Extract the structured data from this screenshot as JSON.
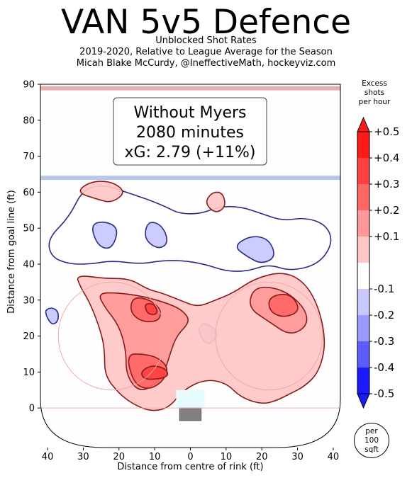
{
  "title": "VAN 5v5 Defence",
  "subtitle_lines": [
    "Unblocked Shot Rates",
    "2019-2020, Relative to League Average for the Season",
    "Micah Blake McCurdy, @IneffectiveMath, hockeyviz.com"
  ],
  "colorbar": {
    "title_lines": [
      "Excess",
      "shots",
      "per hour"
    ],
    "tick_labels": [
      "+0.5",
      "+0.4",
      "+0.3",
      "+0.2",
      "+0.1",
      "-0.1",
      "-0.2",
      "-0.3",
      "-0.4",
      "-0.5"
    ],
    "colors": [
      "#ff1a1a",
      "#ff4040",
      "#ff6666",
      "#ff9898",
      "#ffc6c6",
      "#ffffff",
      "#c8c8ff",
      "#9b9bff",
      "#5c5cff",
      "#1a1aff"
    ],
    "unit_lines": [
      "per",
      "100",
      "sqft"
    ]
  },
  "chart_data": {
    "type": "heatmap",
    "title": "VAN 5v5 Defence",
    "xlabel": "Distance from centre of rink (ft)",
    "ylabel": "Distance from goal line (ft)",
    "xlim": [
      42,
      -42
    ],
    "ylim": [
      -11,
      90
    ],
    "x_ticks": [
      40,
      30,
      20,
      10,
      0,
      10,
      20,
      30,
      40
    ],
    "y_ticks": [
      0,
      10,
      20,
      30,
      40,
      50,
      60,
      70,
      80,
      90
    ],
    "annotation": [
      "Without Myers",
      "2080 minutes",
      "xG: 2.79 (+11%)"
    ],
    "blue_line_y": 64,
    "centre_line_y": 89,
    "faceoff_circles": [
      {
        "x": 22,
        "y": 20,
        "r": 15
      },
      {
        "x": -22,
        "y": 20,
        "r": 15
      }
    ],
    "contour_levels": [
      -0.5,
      -0.4,
      -0.3,
      -0.2,
      -0.1,
      0.1,
      0.2,
      0.3,
      0.4,
      0.5
    ],
    "regions": [
      {
        "level": "-0.1",
        "points": [
          [
            34,
            53
          ],
          [
            30,
            61
          ],
          [
            24,
            62
          ],
          [
            18,
            60
          ],
          [
            12,
            58
          ],
          [
            7,
            56
          ],
          [
            3,
            54
          ],
          [
            -3,
            54
          ],
          [
            -8,
            56
          ],
          [
            -14,
            56
          ],
          [
            -20,
            54
          ],
          [
            -26,
            52
          ],
          [
            -32,
            53
          ],
          [
            -38,
            51
          ],
          [
            -40,
            46
          ],
          [
            -36,
            40
          ],
          [
            -28,
            38
          ],
          [
            -22,
            40
          ],
          [
            -16,
            38
          ],
          [
            -10,
            38
          ],
          [
            -4,
            40
          ],
          [
            2,
            41
          ],
          [
            8,
            41
          ],
          [
            14,
            40
          ],
          [
            22,
            41
          ],
          [
            28,
            40
          ],
          [
            34,
            40
          ],
          [
            39,
            42
          ],
          [
            40,
            47
          ]
        ]
      },
      {
        "level": "-0.2",
        "points": [
          [
            28,
            51
          ],
          [
            24,
            52
          ],
          [
            20,
            50
          ],
          [
            22,
            44
          ],
          [
            26,
            45
          ]
        ]
      },
      {
        "level": "-0.2",
        "points": [
          [
            12,
            52
          ],
          [
            8,
            51
          ],
          [
            6,
            46
          ],
          [
            9,
            44
          ],
          [
            13,
            47
          ]
        ]
      },
      {
        "level": "-0.2",
        "points": [
          [
            -12,
            45
          ],
          [
            -16,
            42
          ],
          [
            -20,
            40
          ],
          [
            -24,
            42
          ],
          [
            -22,
            47
          ],
          [
            -17,
            48
          ]
        ]
      },
      {
        "level": "-0.2",
        "points": [
          [
            -2,
            22
          ],
          [
            -4,
            18
          ],
          [
            -6,
            18
          ],
          [
            -8,
            21
          ],
          [
            -4,
            24
          ]
        ]
      },
      {
        "level": "-0.2",
        "points": [
          [
            41,
            27
          ],
          [
            39,
            23
          ],
          [
            37,
            24
          ],
          [
            37,
            27
          ],
          [
            39,
            28
          ]
        ]
      },
      {
        "level": "0.1",
        "points": [
          [
            32,
            37
          ],
          [
            24,
            36
          ],
          [
            17,
            36
          ],
          [
            12,
            33
          ],
          [
            8,
            32
          ],
          [
            3,
            30
          ],
          [
            -2,
            28
          ],
          [
            -7,
            30
          ],
          [
            -12,
            32
          ],
          [
            -18,
            36
          ],
          [
            -26,
            38
          ],
          [
            -32,
            35
          ],
          [
            -36,
            28
          ],
          [
            -38,
            18
          ],
          [
            -36,
            10
          ],
          [
            -32,
            6
          ],
          [
            -28,
            4
          ],
          [
            -24,
            2
          ],
          [
            -20,
            1
          ],
          [
            -14,
            3
          ],
          [
            -10,
            7
          ],
          [
            -4,
            8
          ],
          [
            2,
            5
          ],
          [
            6,
            0
          ],
          [
            11,
            -1
          ],
          [
            16,
            1
          ],
          [
            20,
            4
          ],
          [
            24,
            9
          ],
          [
            24,
            16
          ],
          [
            25,
            21
          ],
          [
            28,
            29
          ],
          [
            31,
            34
          ]
        ]
      },
      {
        "level": "0.1",
        "points": [
          [
            32,
            60
          ],
          [
            28,
            63
          ],
          [
            22,
            63
          ],
          [
            18,
            60
          ],
          [
            22,
            57
          ],
          [
            26,
            58
          ]
        ]
      },
      {
        "level": "0.1",
        "points": [
          [
            -4,
            57
          ],
          [
            -6,
            60
          ],
          [
            -9,
            60
          ],
          [
            -10,
            56
          ],
          [
            -7,
            54
          ]
        ]
      },
      {
        "level": "0.2",
        "points": [
          [
            26,
            32
          ],
          [
            20,
            32
          ],
          [
            13,
            31
          ],
          [
            6,
            29
          ],
          [
            2,
            27
          ],
          [
            0,
            24
          ],
          [
            4,
            20
          ],
          [
            6,
            14
          ],
          [
            8,
            8
          ],
          [
            14,
            4
          ],
          [
            18,
            9
          ],
          [
            18,
            16
          ],
          [
            20,
            23
          ],
          [
            24,
            28
          ]
        ]
      },
      {
        "level": "0.2",
        "points": [
          [
            -18,
            34
          ],
          [
            -26,
            33
          ],
          [
            -32,
            28
          ],
          [
            -33,
            23
          ],
          [
            -28,
            20
          ],
          [
            -22,
            24
          ],
          [
            -16,
            28
          ]
        ]
      },
      {
        "level": "0.3",
        "points": [
          [
            18,
            15
          ],
          [
            13,
            15
          ],
          [
            9,
            14
          ],
          [
            6,
            11
          ],
          [
            8,
            7
          ],
          [
            12,
            5
          ],
          [
            16,
            7
          ]
        ]
      },
      {
        "level": "0.3",
        "points": [
          [
            16,
            31
          ],
          [
            11,
            30
          ],
          [
            8,
            27
          ],
          [
            9,
            24
          ],
          [
            14,
            24
          ],
          [
            17,
            27
          ]
        ]
      },
      {
        "level": "0.3",
        "points": [
          [
            -22,
            31
          ],
          [
            -28,
            32
          ],
          [
            -31,
            27
          ],
          [
            -26,
            25
          ],
          [
            -22,
            27
          ]
        ]
      },
      {
        "level": "0.4",
        "points": [
          [
            14,
            10
          ],
          [
            11,
            12
          ],
          [
            7,
            11
          ],
          [
            6,
            9
          ],
          [
            9,
            8
          ],
          [
            13,
            8
          ]
        ]
      },
      {
        "level": "0.4",
        "points": [
          [
            13,
            29
          ],
          [
            10,
            29
          ],
          [
            9,
            26
          ],
          [
            12,
            26
          ]
        ]
      }
    ]
  }
}
